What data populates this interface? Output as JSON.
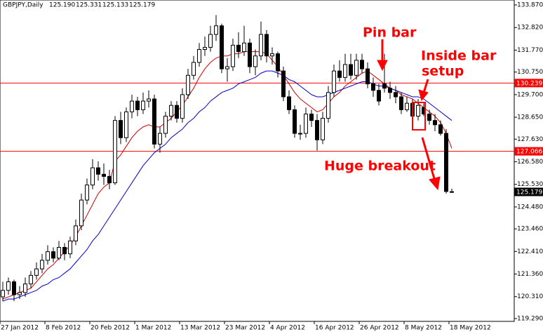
{
  "chart_data": {
    "type": "candlestick",
    "symbol": "GBPJPY,Daily",
    "header_prices": [
      "125.190",
      "125.331",
      "125.133",
      "125.179"
    ],
    "categories": [
      "27 Jan 2012",
      null,
      null,
      null,
      null,
      null,
      null,
      null,
      "8 Feb 2012",
      null,
      null,
      null,
      null,
      null,
      null,
      null,
      "20 Feb 2012",
      null,
      null,
      null,
      null,
      null,
      null,
      null,
      "1 Mar 2012",
      null,
      null,
      null,
      null,
      null,
      null,
      null,
      "13 Mar 2012",
      null,
      null,
      null,
      null,
      null,
      null,
      null,
      "23 Mar 2012",
      null,
      null,
      null,
      null,
      null,
      null,
      null,
      "4 Apr 2012",
      null,
      null,
      null,
      null,
      null,
      null,
      null,
      "16 Apr 2012",
      null,
      null,
      null,
      null,
      null,
      null,
      null,
      "26 Apr 2012",
      null,
      null,
      null,
      null,
      null,
      null,
      null,
      "8 May 2012",
      null,
      null,
      null,
      null,
      null,
      null,
      null,
      "18 May 2012"
    ],
    "ohlc": [
      [
        120.3,
        121.0,
        120.1,
        120.6
      ],
      [
        120.6,
        121.2,
        120.4,
        121.0
      ],
      [
        121.0,
        121.1,
        120.1,
        120.4
      ],
      [
        120.4,
        120.8,
        120.2,
        120.5
      ],
      [
        120.5,
        121.2,
        120.3,
        120.9
      ],
      [
        120.9,
        121.5,
        120.7,
        121.3
      ],
      [
        121.3,
        121.9,
        121.1,
        121.6
      ],
      [
        121.6,
        122.3,
        121.4,
        122.0
      ],
      [
        122.0,
        122.7,
        121.8,
        122.4
      ],
      [
        122.4,
        122.6,
        121.9,
        122.1
      ],
      [
        122.1,
        122.9,
        122.0,
        122.6
      ],
      [
        122.6,
        122.8,
        122.0,
        122.3
      ],
      [
        122.3,
        123.1,
        122.1,
        122.9
      ],
      [
        122.9,
        123.9,
        122.7,
        123.6
      ],
      [
        123.6,
        125.1,
        123.4,
        124.8
      ],
      [
        124.8,
        125.8,
        124.6,
        125.5
      ],
      [
        125.5,
        126.7,
        125.3,
        126.3
      ],
      [
        126.3,
        126.6,
        125.7,
        126.0
      ],
      [
        126.0,
        126.5,
        125.5,
        125.9
      ],
      [
        125.9,
        126.2,
        125.3,
        125.6
      ],
      [
        125.6,
        128.7,
        125.5,
        128.5
      ],
      [
        128.5,
        128.9,
        127.4,
        127.7
      ],
      [
        127.7,
        129.1,
        127.5,
        128.9
      ],
      [
        128.9,
        129.7,
        128.6,
        129.4
      ],
      [
        129.4,
        129.6,
        128.7,
        129.0
      ],
      [
        129.0,
        129.8,
        128.8,
        129.4
      ],
      [
        129.4,
        129.9,
        129.1,
        129.5
      ],
      [
        129.5,
        129.7,
        127.2,
        127.4
      ],
      [
        127.4,
        128.2,
        127.0,
        127.9
      ],
      [
        127.9,
        128.9,
        127.7,
        128.7
      ],
      [
        128.7,
        129.4,
        128.5,
        129.2
      ],
      [
        129.2,
        129.4,
        128.4,
        128.6
      ],
      [
        128.6,
        130.0,
        128.4,
        129.7
      ],
      [
        129.7,
        130.9,
        129.5,
        130.6
      ],
      [
        130.6,
        131.5,
        130.4,
        131.2
      ],
      [
        131.2,
        132.1,
        131.0,
        131.8
      ],
      [
        131.8,
        132.4,
        131.5,
        131.9
      ],
      [
        131.9,
        132.9,
        131.7,
        132.5
      ],
      [
        132.5,
        133.4,
        132.2,
        132.9
      ],
      [
        132.9,
        133.0,
        130.7,
        130.9
      ],
      [
        130.9,
        131.4,
        130.3,
        131.0
      ],
      [
        131.0,
        132.3,
        130.8,
        132.0
      ],
      [
        132.0,
        132.6,
        131.4,
        131.7
      ],
      [
        131.7,
        132.9,
        131.5,
        132.1
      ],
      [
        132.1,
        132.3,
        130.7,
        131.0
      ],
      [
        131.0,
        131.8,
        130.6,
        131.5
      ],
      [
        131.5,
        133.1,
        131.3,
        132.5
      ],
      [
        132.5,
        132.7,
        131.2,
        131.5
      ],
      [
        131.5,
        131.9,
        131.1,
        131.6
      ],
      [
        131.6,
        131.7,
        130.5,
        130.8
      ],
      [
        130.8,
        131.0,
        129.4,
        129.6
      ],
      [
        129.6,
        129.9,
        128.8,
        129.0
      ],
      [
        129.0,
        129.2,
        127.7,
        127.9
      ],
      [
        127.9,
        128.3,
        127.6,
        127.9
      ],
      [
        127.9,
        129.1,
        127.7,
        128.8
      ],
      [
        128.8,
        129.0,
        128.2,
        128.5
      ],
      [
        128.5,
        128.8,
        127.1,
        127.6
      ],
      [
        127.6,
        128.9,
        127.4,
        128.6
      ],
      [
        128.6,
        130.1,
        128.4,
        129.8
      ],
      [
        129.8,
        131.1,
        129.6,
        130.8
      ],
      [
        130.8,
        131.3,
        130.3,
        130.5
      ],
      [
        130.5,
        131.6,
        130.3,
        131.1
      ],
      [
        131.1,
        131.6,
        130.4,
        130.6
      ],
      [
        130.6,
        131.6,
        130.4,
        131.3
      ],
      [
        131.3,
        131.6,
        130.7,
        130.9
      ],
      [
        130.9,
        131.2,
        130.0,
        130.2
      ],
      [
        130.2,
        130.5,
        129.6,
        129.9
      ],
      [
        129.9,
        130.2,
        129.2,
        129.4
      ],
      [
        130.2,
        131.6,
        129.8,
        130.0
      ],
      [
        130.0,
        130.3,
        129.5,
        129.8
      ],
      [
        129.8,
        130.1,
        129.3,
        129.6
      ],
      [
        129.6,
        129.8,
        128.8,
        129.0
      ],
      [
        129.0,
        129.6,
        128.9,
        129.3
      ],
      [
        129.3,
        129.5,
        128.5,
        128.7
      ],
      [
        128.7,
        129.5,
        128.5,
        129.2
      ],
      [
        129.1,
        129.3,
        128.7,
        128.8
      ],
      [
        128.8,
        129.0,
        128.3,
        128.5
      ],
      [
        128.5,
        128.8,
        128.0,
        128.3
      ],
      [
        128.3,
        128.5,
        127.8,
        127.9
      ],
      [
        127.9,
        128.1,
        125.1,
        125.2
      ],
      [
        125.19,
        125.331,
        125.133,
        125.179
      ]
    ],
    "lines": [
      {
        "color": "#cc0000",
        "values": [
          120.2,
          120.3,
          120.4,
          120.5,
          120.6,
          120.7,
          121.0,
          121.3,
          121.6,
          121.8,
          122.1,
          122.4,
          122.7,
          123.1,
          123.6,
          124.1,
          124.6,
          125.1,
          125.4,
          125.6,
          126.6,
          126.9,
          127.3,
          127.7,
          128.0,
          128.2,
          128.3,
          128.2,
          128.2,
          128.4,
          128.6,
          128.9,
          129.2,
          129.6,
          130.0,
          130.5,
          130.9,
          131.2,
          131.4,
          131.5,
          131.5,
          131.6,
          131.6,
          131.7,
          131.7,
          131.7,
          131.7,
          131.6,
          131.3,
          131.0,
          130.6,
          130.2,
          129.8,
          129.5,
          129.3,
          129.1,
          128.9,
          129.0,
          129.3,
          129.6,
          129.8,
          130.1,
          130.3,
          130.5,
          130.7,
          130.8,
          130.6,
          130.4,
          130.2,
          130.0,
          129.9,
          129.7,
          129.6,
          129.5,
          129.3,
          129.1,
          128.9,
          128.7,
          128.4,
          127.9,
          127.2
        ]
      },
      {
        "color": "#0000cc",
        "values": [
          120.1,
          120.2,
          120.2,
          120.3,
          120.4,
          120.5,
          120.6,
          120.8,
          120.9,
          121.1,
          121.2,
          121.4,
          121.6,
          121.9,
          122.2,
          122.5,
          122.9,
          123.2,
          123.6,
          124.0,
          124.4,
          124.8,
          125.2,
          125.6,
          126.0,
          126.4,
          126.7,
          127.0,
          127.2,
          127.4,
          127.7,
          127.9,
          128.1,
          128.4,
          128.6,
          128.9,
          129.1,
          129.4,
          129.6,
          129.8,
          129.9,
          130.0,
          130.2,
          130.3,
          130.4,
          130.5,
          130.7,
          130.8,
          130.8,
          130.7,
          130.6,
          130.4,
          130.3,
          130.1,
          129.9,
          129.7,
          129.6,
          129.6,
          129.7,
          129.8,
          129.9,
          130.0,
          130.1,
          130.2,
          130.3,
          130.3,
          130.2,
          130.1,
          130.1,
          130.0,
          129.9,
          129.8,
          129.7,
          129.6,
          129.6,
          129.5,
          129.3,
          129.1,
          128.9,
          128.7,
          128.5
        ]
      }
    ],
    "levels": [
      {
        "value": 130.239,
        "color": "#ff0000"
      },
      {
        "value": 127.066,
        "color": "#ff0000"
      }
    ],
    "last_price": 125.179,
    "ylim": [
      119.16,
      134.1
    ],
    "yticks": [
      {
        "value": 133.87,
        "label": "133.870"
      },
      {
        "value": 132.82,
        "label": "132.820"
      },
      {
        "value": 131.77,
        "label": "131.770"
      },
      {
        "value": 130.75,
        "label": "130.750"
      },
      {
        "value": 129.7,
        "label": "129.700"
      },
      {
        "value": 128.65,
        "label": "128.650"
      },
      {
        "value": 127.63,
        "label": "127.630"
      },
      {
        "value": 126.58,
        "label": "126.580"
      },
      {
        "value": 125.53,
        "label": "125.530"
      },
      {
        "value": 124.48,
        "label": "124.480"
      },
      {
        "value": 123.46,
        "label": "123.460"
      },
      {
        "value": 122.41,
        "label": "122.410"
      },
      {
        "value": 121.36,
        "label": "121.360"
      },
      {
        "value": 120.31,
        "label": "120.310"
      },
      {
        "value": 119.29,
        "label": "119.290"
      }
    ],
    "annotations": {
      "pin_bar": "Pin bar",
      "inside_bar_1": "Inside bar",
      "inside_bar_2": "setup",
      "breakout": "Huge breakout"
    }
  }
}
